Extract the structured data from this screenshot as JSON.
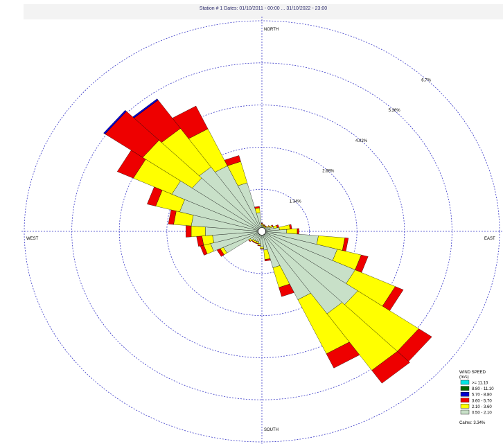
{
  "title": "Station #   1  Dates: 01/10/2011 - 00:00 ... 31/10/2022 - 23:00",
  "chart_data": {
    "type": "wind_rose",
    "directions": [
      0,
      10,
      20,
      30,
      40,
      50,
      60,
      70,
      80,
      90,
      100,
      110,
      120,
      130,
      140,
      150,
      160,
      170,
      180,
      190,
      200,
      210,
      220,
      230,
      240,
      250,
      260,
      270,
      280,
      290,
      300,
      310,
      320,
      330,
      340,
      350
    ],
    "compass": {
      "north": "NORTH",
      "east": "EAST",
      "south": "SOUTH",
      "west": "WEST"
    },
    "rings": [
      {
        "value": 1.34,
        "label": "1.34%"
      },
      {
        "value": 2.68,
        "label": "2.68%"
      },
      {
        "value": 4.02,
        "label": "4.02%"
      },
      {
        "value": 5.36,
        "label": "5.36%"
      },
      {
        "value": 6.7,
        "label": "6.7%"
      }
    ],
    "max_percent": 6.7,
    "classes": [
      {
        "label": "0.50 - 2.10",
        "color": "#c8e0c8"
      },
      {
        "label": "2.10 - 3.60",
        "color": "#ffff00"
      },
      {
        "label": "3.60 - 5.70",
        "color": "#ee0000"
      },
      {
        "label": "5.70 - 8.80",
        "color": "#0000cc"
      },
      {
        "label": "8.80 - 11.10",
        "color": "#006600"
      },
      {
        "label": ">= 11.10",
        "color": "#00e5e5"
      }
    ],
    "values": [
      [
        0.2,
        0.05,
        0.02,
        0,
        0,
        0
      ],
      [
        0.15,
        0.05,
        0.02,
        0,
        0,
        0
      ],
      [
        0.15,
        0.05,
        0.02,
        0,
        0,
        0
      ],
      [
        0.15,
        0.03,
        0.02,
        0,
        0,
        0
      ],
      [
        0.15,
        0.03,
        0.02,
        0,
        0,
        0
      ],
      [
        0.2,
        0.05,
        0.02,
        0,
        0,
        0
      ],
      [
        0.25,
        0.08,
        0.03,
        0,
        0,
        0
      ],
      [
        0.35,
        0.1,
        0.05,
        0,
        0,
        0
      ],
      [
        0.5,
        0.3,
        0.05,
        0,
        0,
        0
      ],
      [
        0.7,
        0.3,
        0.05,
        0,
        0,
        0
      ],
      [
        1.6,
        0.75,
        0.1,
        0,
        0,
        0
      ],
      [
        2.2,
        0.7,
        0.2,
        0,
        0,
        0
      ],
      [
        2.9,
        1.25,
        0.25,
        0,
        0,
        0
      ],
      [
        3.3,
        2.1,
        0.45,
        0,
        0,
        0
      ],
      [
        3.2,
        2.2,
        0.5,
        0,
        0,
        0
      ],
      [
        2.4,
        1.9,
        0.5,
        0,
        0,
        0
      ],
      [
        1.2,
        0.65,
        0.3,
        0,
        0,
        0
      ],
      [
        0.6,
        0.3,
        0.05,
        0,
        0,
        0
      ],
      [
        0.5,
        0.05,
        0.02,
        0,
        0,
        0
      ],
      [
        0.4,
        0.05,
        0.02,
        0,
        0,
        0
      ],
      [
        0.35,
        0.05,
        0.02,
        0,
        0,
        0
      ],
      [
        0.35,
        0.05,
        0.02,
        0,
        0,
        0
      ],
      [
        0.35,
        0.05,
        0.02,
        0,
        0,
        0
      ],
      [
        0.4,
        0.05,
        0.02,
        0,
        0,
        0
      ],
      [
        1.2,
        0.1,
        0.1,
        0,
        0,
        0
      ],
      [
        1.5,
        0.2,
        0.1,
        0,
        0,
        0
      ],
      [
        1.4,
        0.3,
        0.15,
        0,
        0,
        0
      ],
      [
        1.6,
        0.4,
        0.15,
        0,
        0,
        0
      ],
      [
        2.0,
        0.5,
        0.15,
        0,
        0,
        0
      ],
      [
        2.4,
        0.7,
        0.25,
        0,
        0,
        0
      ],
      [
        2.8,
        1.2,
        0.5,
        0,
        0,
        0
      ],
      [
        2.4,
        1.7,
        1.3,
        0.05,
        0,
        0
      ],
      [
        2.5,
        1.5,
        1.1,
        0.05,
        0,
        0
      ],
      [
        2.3,
        1.3,
        0.8,
        0,
        0,
        0
      ],
      [
        1.6,
        0.7,
        0.2,
        0,
        0,
        0
      ],
      [
        0.6,
        0.15,
        0.05,
        0,
        0,
        0
      ]
    ],
    "legend": {
      "title": "WIND SPEED",
      "unit": "(m/s)",
      "calms": "Calms: 3.34%",
      "items": [
        {
          "label": ">= 11.10",
          "color": "#00e5e5"
        },
        {
          "label": "8.80 - 11.10",
          "color": "#006600"
        },
        {
          "label": "5.70 - 8.80",
          "color": "#0000cc"
        },
        {
          "label": "3.60 - 5.70",
          "color": "#ee0000"
        },
        {
          "label": "2.10 - 3.60",
          "color": "#ffff00"
        },
        {
          "label": "0.50 - 2.10",
          "color": "#c8e0c8"
        }
      ]
    }
  }
}
